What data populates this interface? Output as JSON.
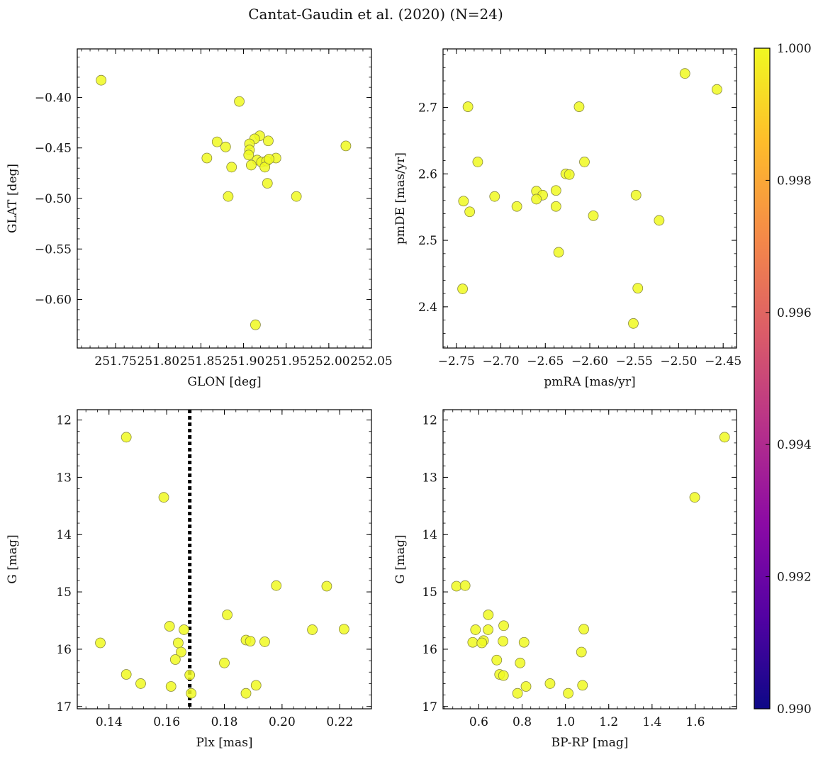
{
  "figure": {
    "title": "Cantat-Gaudin et al. (2020) (N=24)"
  },
  "colorbar": {
    "ticks": [
      "0.990",
      "0.992",
      "0.994",
      "0.996",
      "0.998",
      "1.000"
    ],
    "range": [
      0.99,
      1.0
    ],
    "colormap": "plasma"
  },
  "colors": {
    "point_fill": "#f0f921",
    "point_edge": "#8a8a40",
    "vline": "#000000",
    "cmap_stops": [
      "#0d0887",
      "#5302a3",
      "#8b0aa5",
      "#b83289",
      "#db5c68",
      "#f48849",
      "#febd2a",
      "#f0f921"
    ]
  },
  "chart_data": [
    {
      "type": "scatter",
      "xlabel": "GLON [deg]",
      "ylabel": "GLAT [deg]",
      "xlim": [
        251.705,
        252.05
      ],
      "ylim": [
        -0.648,
        -0.352
      ],
      "y_inverted": false,
      "xticks": [
        251.75,
        251.8,
        251.85,
        251.9,
        251.95,
        252.0,
        252.05
      ],
      "xtick_labels": [
        "251.75",
        "251.80",
        "251.85",
        "251.90",
        "251.95",
        "252.00",
        "252.05"
      ],
      "yticks": [
        -0.4,
        -0.45,
        -0.5,
        -0.55,
        -0.6
      ],
      "ytick_labels": [
        "−0.40",
        "−0.45",
        "−0.50",
        "−0.55",
        "−0.60"
      ],
      "x": [
        251.733,
        251.895,
        251.919,
        251.913,
        251.929,
        251.907,
        251.869,
        251.879,
        251.907,
        251.906,
        251.857,
        251.938,
        251.916,
        251.921,
        251.927,
        251.886,
        251.909,
        251.925,
        251.928,
        251.882,
        251.962,
        252.02,
        251.914,
        251.93
      ],
      "y": [
        -0.383,
        -0.404,
        -0.438,
        -0.441,
        -0.443,
        -0.446,
        -0.444,
        -0.449,
        -0.452,
        -0.457,
        -0.46,
        -0.46,
        -0.462,
        -0.464,
        -0.463,
        -0.469,
        -0.467,
        -0.469,
        -0.485,
        -0.498,
        -0.498,
        -0.448,
        -0.625,
        -0.461
      ]
    },
    {
      "type": "scatter",
      "xlabel": "pmRA [mas/yr]",
      "ylabel": "pmDE [mas/yr]",
      "xlim": [
        -2.765,
        -2.435
      ],
      "ylim": [
        2.338,
        2.788
      ],
      "y_inverted": false,
      "xticks": [
        -2.75,
        -2.7,
        -2.65,
        -2.6,
        -2.55,
        -2.5,
        -2.45
      ],
      "xtick_labels": [
        "−2.75",
        "−2.70",
        "−2.65",
        "−2.60",
        "−2.55",
        "−2.50",
        "−2.45"
      ],
      "yticks": [
        2.4,
        2.5,
        2.6,
        2.7
      ],
      "ytick_labels": [
        "2.4",
        "2.5",
        "2.6",
        "2.7"
      ],
      "x": [
        -2.737,
        -2.612,
        -2.493,
        -2.457,
        -2.726,
        -2.606,
        -2.627,
        -2.623,
        -2.742,
        -2.707,
        -2.66,
        -2.653,
        -2.638,
        -2.66,
        -2.735,
        -2.682,
        -2.638,
        -2.596,
        -2.548,
        -2.522,
        -2.635,
        -2.743,
        -2.546,
        -2.551
      ],
      "y": [
        2.701,
        2.701,
        2.751,
        2.727,
        2.618,
        2.618,
        2.6,
        2.599,
        2.559,
        2.566,
        2.574,
        2.568,
        2.575,
        2.562,
        2.543,
        2.551,
        2.551,
        2.537,
        2.568,
        2.53,
        2.482,
        2.427,
        2.428,
        2.375
      ]
    },
    {
      "type": "scatter",
      "xlabel": "Plx [mas]",
      "ylabel": "G [mag]",
      "xlim": [
        0.129,
        0.231
      ],
      "ylim": [
        17.04,
        11.82
      ],
      "y_inverted": true,
      "xticks": [
        0.14,
        0.16,
        0.18,
        0.2,
        0.22
      ],
      "xtick_labels": [
        "0.14",
        "0.16",
        "0.18",
        "0.20",
        "0.22"
      ],
      "yticks": [
        12,
        13,
        14,
        15,
        16,
        17
      ],
      "ytick_labels": [
        "12",
        "13",
        "14",
        "15",
        "16",
        "17"
      ],
      "vline": 0.168,
      "x": [
        0.146,
        0.159,
        0.198,
        0.2155,
        0.181,
        0.161,
        0.166,
        0.2105,
        0.2215,
        0.137,
        0.1875,
        0.189,
        0.194,
        0.164,
        0.18,
        0.165,
        0.163,
        0.146,
        0.168,
        0.151,
        0.1615,
        0.191,
        0.1875,
        0.1685
      ],
      "y": [
        12.3,
        13.35,
        14.89,
        14.9,
        15.4,
        15.6,
        15.66,
        15.66,
        15.65,
        15.89,
        15.84,
        15.86,
        15.87,
        15.89,
        16.24,
        16.05,
        16.18,
        16.44,
        16.45,
        16.6,
        16.65,
        16.63,
        16.77,
        16.77
      ]
    },
    {
      "type": "scatter",
      "xlabel": "BP-RP [mag]",
      "ylabel": "G [mag]",
      "xlim": [
        0.435,
        1.79
      ],
      "ylim": [
        17.04,
        11.82
      ],
      "y_inverted": true,
      "xticks": [
        0.6,
        0.8,
        1.0,
        1.2,
        1.4,
        1.6
      ],
      "xtick_labels": [
        "0.6",
        "0.8",
        "1.0",
        "1.2",
        "1.4",
        "1.6"
      ],
      "yticks": [
        12,
        13,
        14,
        15,
        16,
        17
      ],
      "ytick_labels": [
        "12",
        "13",
        "14",
        "15",
        "16",
        "17"
      ],
      "x": [
        1.735,
        1.597,
        0.497,
        0.537,
        0.644,
        0.715,
        0.585,
        0.643,
        1.085,
        0.572,
        0.622,
        0.614,
        0.712,
        0.809,
        1.074,
        0.683,
        0.791,
        0.696,
        0.714,
        0.929,
        0.818,
        1.079,
        0.779,
        1.013
      ],
      "y": [
        12.3,
        13.35,
        14.9,
        14.89,
        15.4,
        15.59,
        15.66,
        15.66,
        15.65,
        15.88,
        15.85,
        15.89,
        15.86,
        15.88,
        16.05,
        16.19,
        16.24,
        16.44,
        16.46,
        16.6,
        16.65,
        16.63,
        16.77,
        16.77
      ]
    }
  ]
}
